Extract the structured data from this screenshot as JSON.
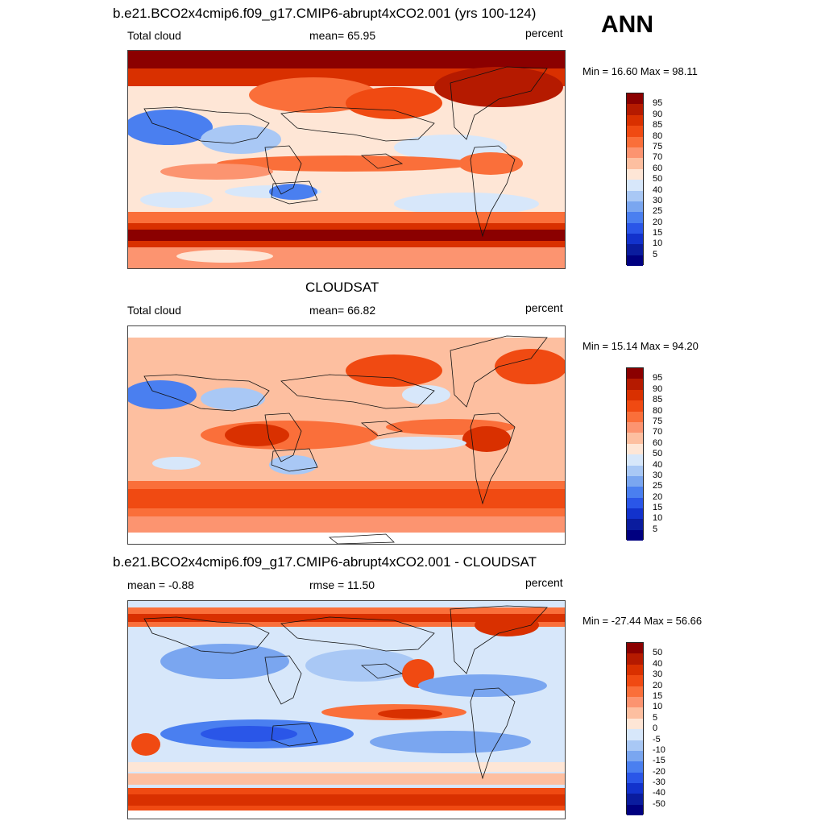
{
  "season": "ANN",
  "panels": [
    {
      "title": "b.e21.BCO2x4cmip6.f09_g17.CMIP6-abrupt4xCO2.001 (yrs 100-124)",
      "left_label": "Total cloud",
      "center_label": "mean=  65.95",
      "units": "percent",
      "minmax": "Min =  16.60 Max =  98.11",
      "levels": [
        "95",
        "90",
        "85",
        "80",
        "75",
        "70",
        "60",
        "50",
        "40",
        "30",
        "25",
        "20",
        "15",
        "10",
        "5"
      ]
    },
    {
      "title": "CLOUDSAT",
      "left_label": "Total cloud",
      "center_label": "mean=  66.82",
      "units": "percent",
      "minmax": "Min =  15.14 Max =  94.20",
      "levels": [
        "95",
        "90",
        "85",
        "80",
        "75",
        "70",
        "60",
        "50",
        "40",
        "30",
        "25",
        "20",
        "15",
        "10",
        "5"
      ]
    },
    {
      "title": "b.e21.BCO2x4cmip6.f09_g17.CMIP6-abrupt4xCO2.001 - CLOUDSAT",
      "left_label": "mean =  -0.88",
      "center_label": "rmse =  11.50",
      "units": "percent",
      "minmax": "Min = -27.44 Max =  56.66",
      "levels": [
        "50",
        "40",
        "30",
        "20",
        "15",
        "10",
        "5",
        "0",
        "-5",
        "-10",
        "-15",
        "-20",
        "-30",
        "-40",
        "-50"
      ]
    }
  ],
  "colors": {
    "scale": [
      "#8b0000",
      "#b51a00",
      "#d93000",
      "#f04a12",
      "#fa6f3a",
      "#fc9470",
      "#fdbfa0",
      "#fee6d6",
      "#d7e7fa",
      "#a9c8f5",
      "#7aa6f0",
      "#4a7ff0",
      "#2a56e8",
      "#1232cc",
      "#0a1c9e",
      "#000080"
    ]
  }
}
